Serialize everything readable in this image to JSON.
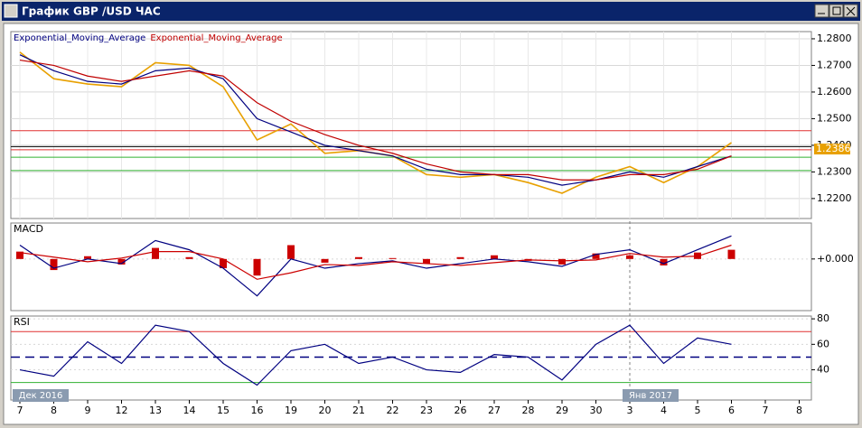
{
  "window_title": "График GBP /USD ЧАС",
  "chart_data": [
    {
      "type": "line",
      "title": null,
      "categories": [
        "7",
        "8",
        "9",
        "12",
        "13",
        "14",
        "15",
        "16",
        "19",
        "20",
        "21",
        "22",
        "23",
        "26",
        "27",
        "28",
        "29",
        "30",
        "3",
        "4",
        "5",
        "6",
        "7",
        "8"
      ],
      "period_labels": [
        "Дек 2016",
        "Янв 2017"
      ],
      "series": [
        {
          "color": "#e8a000",
          "values": [
            1.275,
            1.265,
            1.263,
            1.262,
            1.271,
            1.27,
            1.262,
            1.242,
            1.248,
            1.237,
            1.238,
            1.236,
            1.229,
            1.228,
            1.229,
            1.226,
            1.222,
            1.228,
            1.232,
            1.226,
            1.232,
            1.241,
            null,
            null
          ]
        },
        {
          "name": "Exponential_Moving_Average",
          "color": "#000080",
          "values": [
            1.274,
            1.268,
            1.264,
            1.263,
            1.268,
            1.269,
            1.265,
            1.25,
            1.245,
            1.24,
            1.238,
            1.236,
            1.231,
            1.229,
            1.229,
            1.228,
            1.225,
            1.227,
            1.23,
            1.228,
            1.232,
            1.236,
            null,
            null
          ]
        },
        {
          "name": "Exponential_Moving_Average",
          "color": "#c00000",
          "values": [
            1.272,
            1.27,
            1.266,
            1.264,
            1.266,
            1.268,
            1.266,
            1.256,
            1.249,
            1.244,
            1.24,
            1.237,
            1.233,
            1.23,
            1.229,
            1.229,
            1.227,
            1.227,
            1.229,
            1.229,
            1.231,
            1.236,
            null,
            null
          ]
        }
      ],
      "levels": [
        {
          "value": 1.2455,
          "color": "#e03030"
        },
        {
          "value": 1.2395,
          "color": "#000000"
        },
        {
          "value": 1.2383,
          "color": "#e03030"
        },
        {
          "value": 1.2355,
          "color": "#30b030"
        },
        {
          "value": 1.2305,
          "color": "#30b030"
        }
      ],
      "last_price": 1.2386,
      "ylim": [
        1.2125,
        1.2827
      ],
      "yticks": [
        {
          "value": 1.22,
          "label": "1.2200"
        },
        {
          "value": 1.23,
          "label": "1.2300"
        },
        {
          "value": 1.24,
          "label": "1.2400"
        },
        {
          "value": 1.25,
          "label": "1.2500"
        },
        {
          "value": 1.26,
          "label": "1.2600"
        },
        {
          "value": 1.27,
          "label": "1.2700"
        },
        {
          "value": 1.28,
          "label": "1.2800"
        }
      ],
      "grid": true
    },
    {
      "type": "line",
      "title": "MACD",
      "series": [
        {
          "type": "bar",
          "color": "#cc0000",
          "values": [
            0.0008,
            -0.0012,
            0.0003,
            -0.0006,
            0.0012,
            0.0002,
            -0.001,
            -0.0018,
            0.0015,
            -0.0004,
            0.0002,
            0.0001,
            -0.0005,
            0.0002,
            0.0004,
            -0.0002,
            -0.0006,
            0.0006,
            0.0004,
            -0.0007,
            0.0007,
            0.001,
            null,
            null
          ]
        },
        {
          "color": "#000080",
          "values": [
            0.0015,
            -0.001,
            0.0,
            -0.0005,
            0.002,
            0.001,
            -0.001,
            -0.004,
            0.0,
            -0.001,
            -0.0005,
            -0.0002,
            -0.001,
            -0.0005,
            0.0,
            -0.0003,
            -0.0008,
            0.0005,
            0.001,
            -0.0005,
            0.001,
            0.0025,
            null,
            null
          ]
        },
        {
          "color": "#cc0000",
          "values": [
            0.0007,
            0.0002,
            -0.0003,
            0.0001,
            0.0008,
            0.0008,
            0.0,
            -0.0022,
            -0.0015,
            -0.0006,
            -0.0007,
            -0.0003,
            -0.0005,
            -0.0007,
            -0.0004,
            -0.0001,
            -0.0002,
            -0.0001,
            0.0006,
            0.0002,
            0.0003,
            0.0015,
            null,
            null
          ]
        }
      ],
      "ylim": [
        -0.0056,
        0.0039
      ],
      "yticks": [
        {
          "value": 0,
          "label": "+0.000"
        }
      ]
    },
    {
      "type": "line",
      "title": "RSI",
      "series": [
        {
          "color": "#000080",
          "values": [
            40,
            35,
            62,
            45,
            75,
            70,
            45,
            28,
            55,
            60,
            45,
            50,
            40,
            38,
            52,
            50,
            32,
            60,
            75,
            45,
            65,
            60,
            null,
            null
          ]
        }
      ],
      "levels": [
        {
          "value": 70,
          "color": "#e03030"
        },
        {
          "value": 50,
          "color": "#000080",
          "dashed": true
        },
        {
          "value": 30,
          "color": "#30b030"
        }
      ],
      "ylim": [
        16.3,
        82.2
      ],
      "yticks": [
        40,
        60,
        80
      ]
    }
  ]
}
